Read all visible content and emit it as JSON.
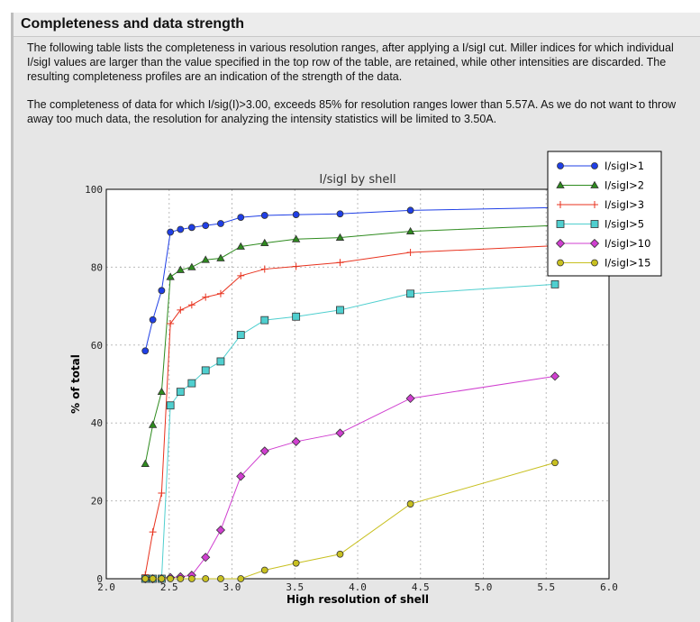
{
  "section": {
    "title": "Completeness and data strength",
    "paragraphs": [
      "The following table lists the completeness in various resolution ranges, after applying a I/sigI cut. Miller indices for which individual I/sigI values are larger than the value specified in the top row of the table, are retained, while other intensities are discarded. The resulting completeness profiles are an indication of the strength of the data.",
      "The completeness of data for which I/sig(I)>3.00, exceeds  85% for resolution ranges lower than 5.57A. As we do not want to throw away too much data, the resolution for analyzing the intensity statistics will be limited to 3.50A."
    ]
  },
  "chart_data": {
    "type": "line",
    "title": "I/sigI by shell",
    "xlabel": "High resolution of shell",
    "ylabel": "% of total",
    "xlim": [
      2.0,
      6.0
    ],
    "ylim": [
      0,
      100
    ],
    "xticks": [
      "2.0",
      "2.5",
      "3.0",
      "3.5",
      "4.0",
      "4.5",
      "5.0",
      "5.5",
      "6.0"
    ],
    "yticks": [
      "0",
      "20",
      "40",
      "60",
      "80",
      "100"
    ],
    "grid": true,
    "legend": "top-right",
    "x": [
      2.31,
      2.37,
      2.44,
      2.51,
      2.59,
      2.68,
      2.79,
      2.91,
      3.07,
      3.26,
      3.51,
      3.86,
      4.42,
      5.57
    ],
    "series": [
      {
        "name": "I/sigI>1",
        "color": "#1f3fe6",
        "marker": "circle",
        "values": [
          58.5,
          66.5,
          74,
          89,
          89.7,
          90.2,
          90.7,
          91.2,
          92.8,
          93.3,
          93.5,
          93.7,
          94.6,
          95.3
        ]
      },
      {
        "name": "I/sigI>2",
        "color": "#2e8b1e",
        "marker": "triangle",
        "values": [
          29.5,
          39.5,
          48,
          77.5,
          79.3,
          80,
          81.9,
          82.3,
          85.3,
          86.2,
          87.2,
          87.6,
          89.2,
          90.7
        ]
      },
      {
        "name": "I/sigI>3",
        "color": "#e8321e",
        "marker": "plus",
        "values": [
          1,
          12,
          22,
          65.5,
          69,
          70.3,
          72.3,
          73.2,
          77.8,
          79.5,
          80.2,
          81.2,
          83.8,
          85.5
        ]
      },
      {
        "name": "I/sigI>5",
        "color": "#4fcfcf",
        "marker": "square",
        "values": [
          0,
          0,
          0,
          44.5,
          48,
          50.2,
          53.5,
          55.8,
          62.6,
          66.4,
          67.3,
          69,
          73.2,
          75.6
        ]
      },
      {
        "name": "I/sigI>10",
        "color": "#d03fd0",
        "marker": "diamond",
        "values": [
          0,
          0,
          0,
          0.3,
          0.5,
          0.9,
          5.5,
          12.5,
          26.3,
          32.8,
          35.2,
          37.4,
          46.3,
          52
        ]
      },
      {
        "name": "I/sigI>15",
        "color": "#c8c020",
        "marker": "circle",
        "values": [
          0,
          0,
          0,
          0,
          0,
          0,
          0,
          0,
          0,
          2.2,
          4,
          6.3,
          19.2,
          29.8
        ]
      }
    ]
  }
}
